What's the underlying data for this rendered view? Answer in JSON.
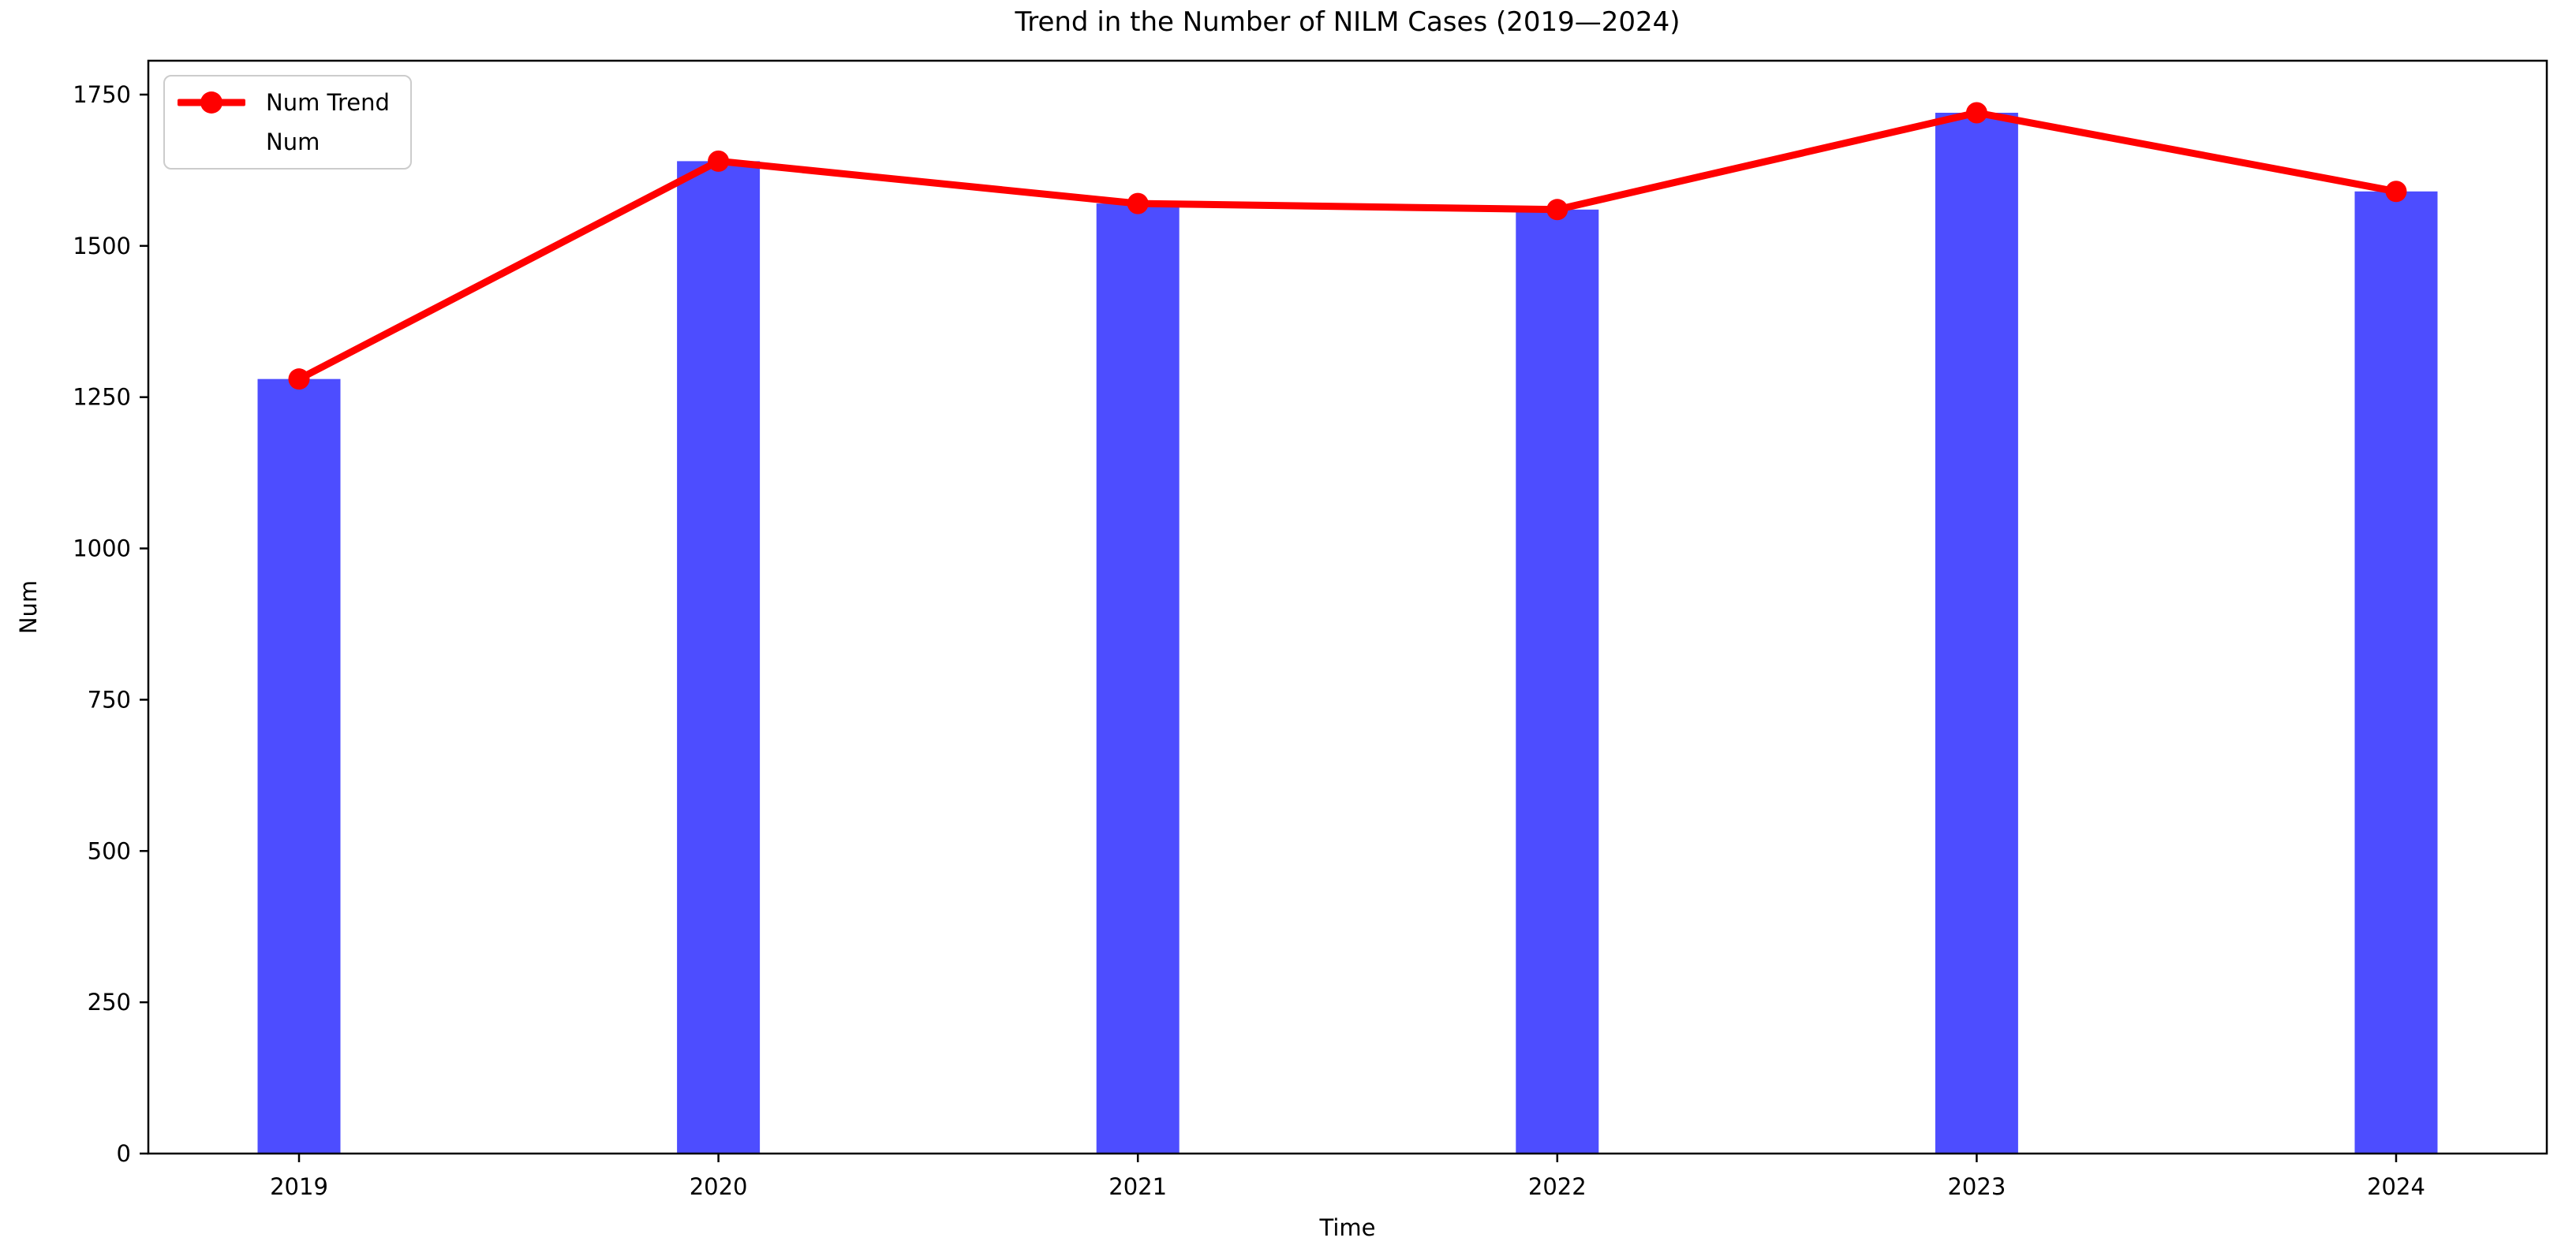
{
  "chart_data": {
    "type": "bar",
    "title": "Trend in the Number of NILM Cases (2019—2024)",
    "xlabel": "Time",
    "ylabel": "Num",
    "categories": [
      "2019",
      "2020",
      "2021",
      "2022",
      "2023",
      "2024"
    ],
    "series": [
      {
        "name": "Num Trend",
        "type": "line",
        "color": "#ff0000",
        "values": [
          1280,
          1640,
          1570,
          1560,
          1720,
          1590
        ]
      },
      {
        "name": "Num",
        "type": "bar",
        "color": "#4d4dff",
        "values": [
          1280,
          1640,
          1570,
          1560,
          1720,
          1590
        ]
      }
    ],
    "ylim": [
      0,
      1806
    ],
    "yticks": [
      0,
      250,
      500,
      750,
      1000,
      1250,
      1500,
      1750
    ],
    "grid": false,
    "legend_position": "upper-left",
    "axis_color": "#000000"
  }
}
